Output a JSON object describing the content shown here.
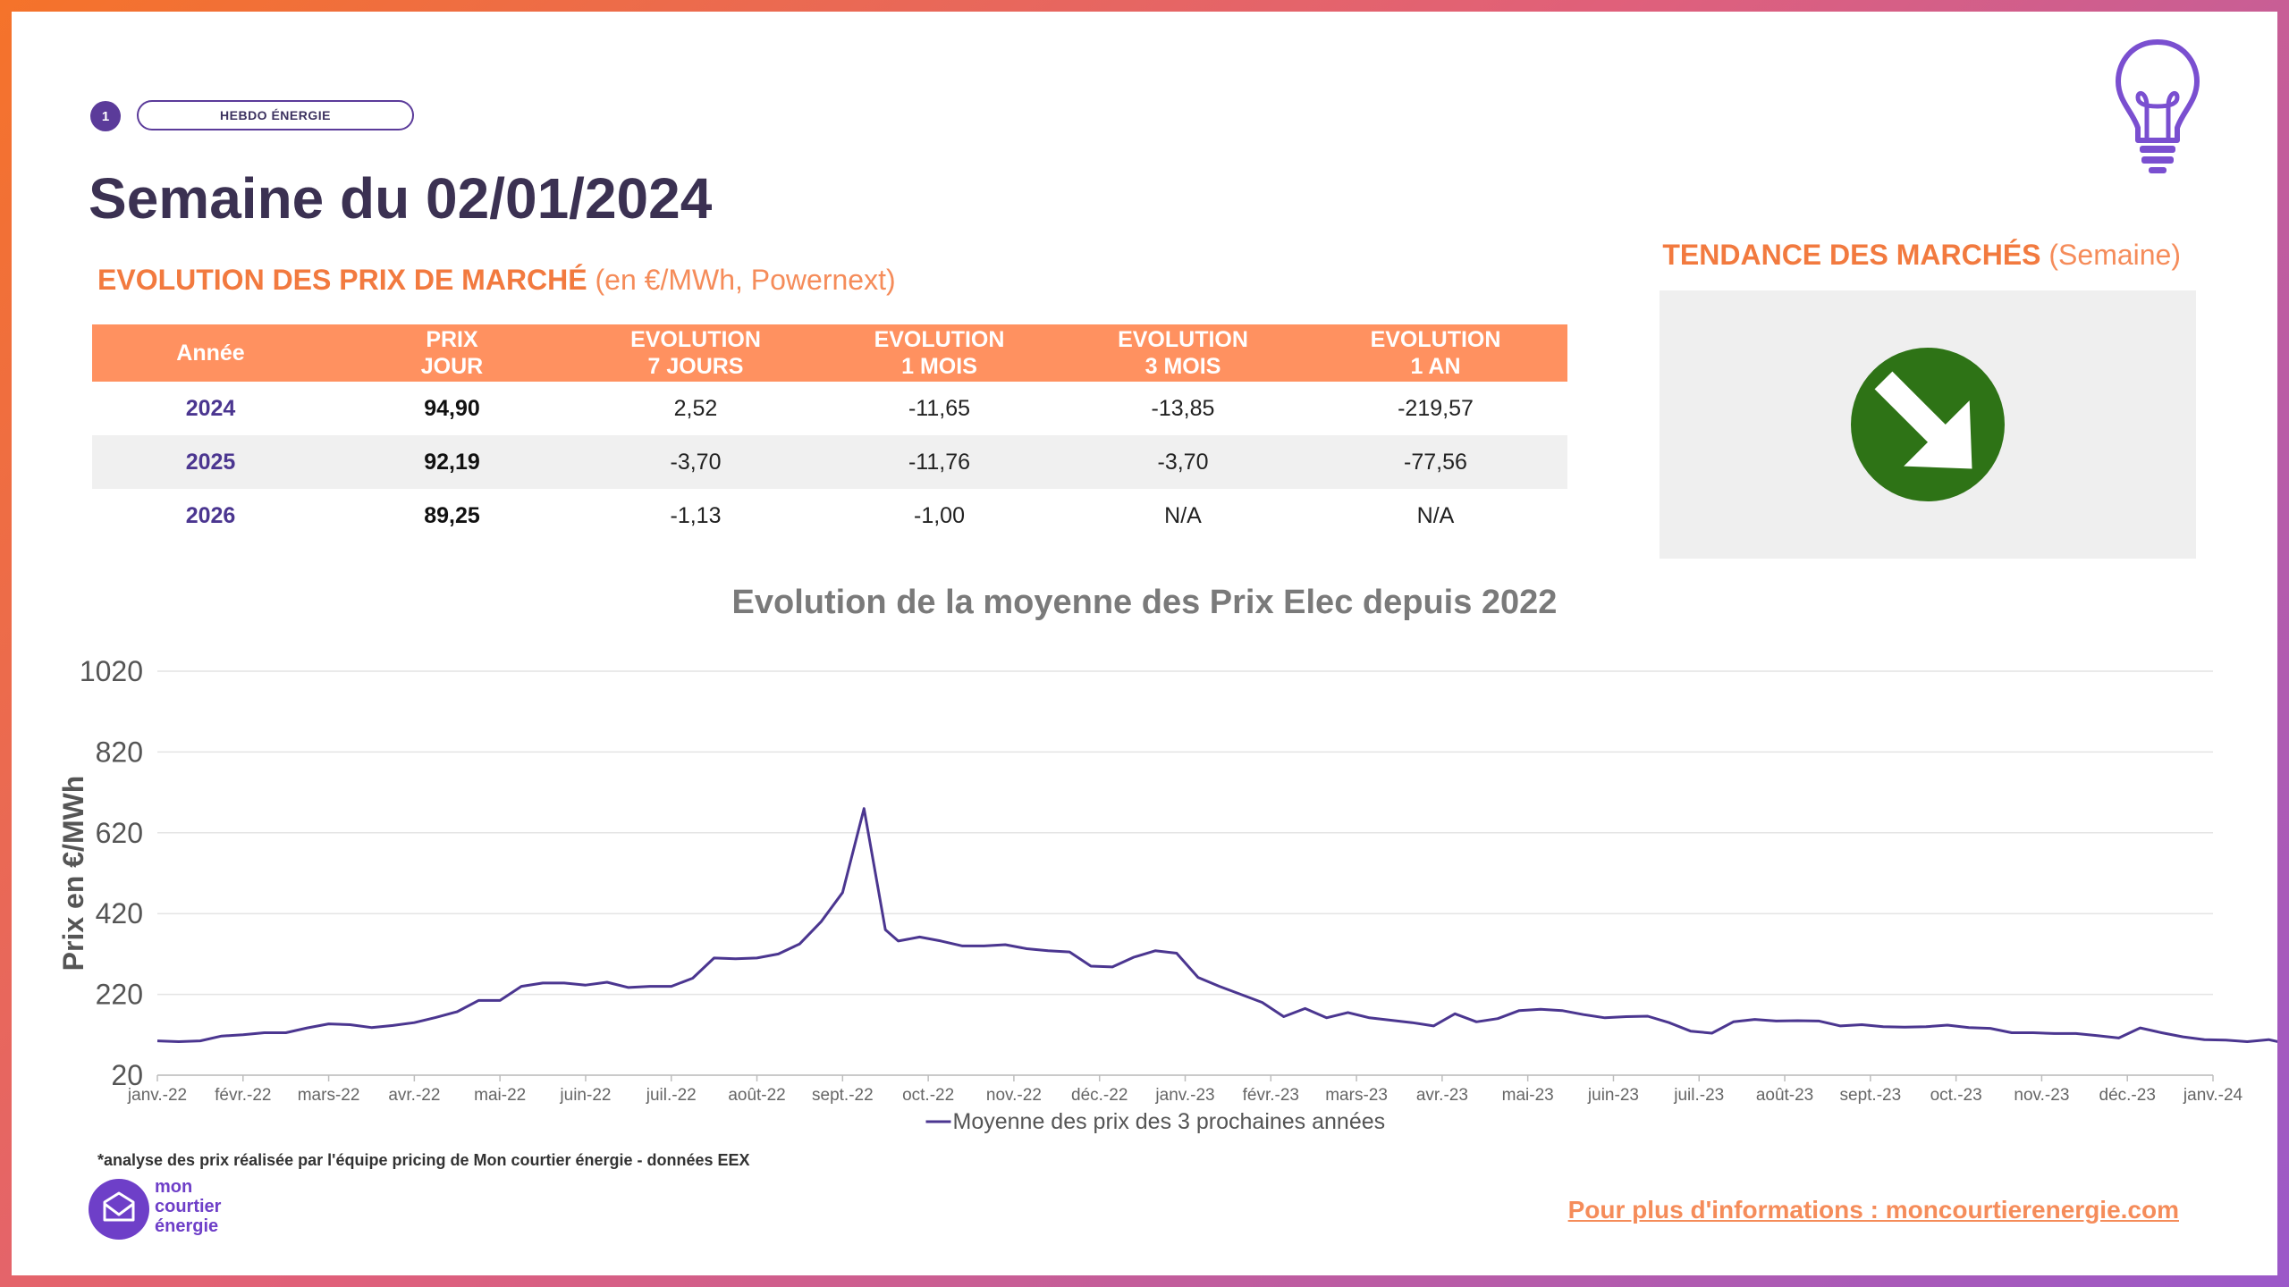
{
  "header": {
    "badge_number": "1",
    "badge_label": "HEBDO ÉNERGIE",
    "title": "Semaine du 02/01/2024",
    "section_bold": "EVOLUTION DES PRIX DE MARCHÉ",
    "section_light": "(en €/MWh, Powernext)",
    "trend_bold": "TENDANCE DES MARCHÉS",
    "trend_light": "(Semaine)"
  },
  "trend": {
    "direction": "down",
    "color": "#2e7316"
  },
  "table": {
    "headers": [
      [
        "Année"
      ],
      [
        "PRIX",
        "JOUR"
      ],
      [
        "EVOLUTION",
        "7 JOURS"
      ],
      [
        "EVOLUTION",
        "1 MOIS"
      ],
      [
        "EVOLUTION",
        "3 MOIS"
      ],
      [
        "EVOLUTION",
        "1 AN"
      ]
    ],
    "rows": [
      [
        "2024",
        "94,90",
        "2,52",
        "-11,65",
        "-13,85",
        "-219,57"
      ],
      [
        "2025",
        "92,19",
        "-3,70",
        "-11,76",
        "-3,70",
        "-77,56"
      ],
      [
        "2026",
        "89,25",
        "-1,13",
        "-1,00",
        "N/A",
        "N/A"
      ]
    ]
  },
  "chart_data": {
    "type": "line",
    "title": "Evolution de la moyenne des Prix Elec depuis 2022",
    "ylabel": "Prix en €/MWh",
    "xlabel": "",
    "ylim": [
      20,
      1020
    ],
    "yticks": [
      20,
      220,
      420,
      620,
      820,
      1020
    ],
    "xticks": [
      "janv.-22",
      "févr.-22",
      "mars-22",
      "avr.-22",
      "mai-22",
      "juin-22",
      "juil.-22",
      "août-22",
      "sept.-22",
      "oct.-22",
      "nov.-22",
      "déc.-22",
      "janv.-23",
      "févr.-23",
      "mars-23",
      "avr.-23",
      "mai-23",
      "juin-23",
      "juil.-23",
      "août-23",
      "sept.-23",
      "oct.-23",
      "nov.-23",
      "déc.-23",
      "janv.-24"
    ],
    "series": [
      {
        "name": "Moyenne des prix des 3 prochaines années",
        "color": "#4b3690",
        "points": [
          [
            0,
            105
          ],
          [
            0.25,
            103
          ],
          [
            0.5,
            105
          ],
          [
            0.75,
            117
          ],
          [
            1,
            120
          ],
          [
            1.25,
            125
          ],
          [
            1.5,
            125
          ],
          [
            1.75,
            137
          ],
          [
            2,
            147
          ],
          [
            2.25,
            145
          ],
          [
            2.5,
            138
          ],
          [
            2.75,
            143
          ],
          [
            3,
            150
          ],
          [
            3.25,
            163
          ],
          [
            3.5,
            177
          ],
          [
            3.75,
            205
          ],
          [
            4,
            205
          ],
          [
            4.25,
            240
          ],
          [
            4.5,
            248
          ],
          [
            4.75,
            248
          ],
          [
            5,
            243
          ],
          [
            5.25,
            250
          ],
          [
            5.5,
            237
          ],
          [
            5.75,
            240
          ],
          [
            6,
            240
          ],
          [
            6.25,
            260
          ],
          [
            6.5,
            310
          ],
          [
            6.75,
            308
          ],
          [
            7,
            310
          ],
          [
            7.25,
            320
          ],
          [
            7.5,
            345
          ],
          [
            7.75,
            400
          ],
          [
            8,
            472
          ],
          [
            8.25,
            680
          ],
          [
            8.5,
            380
          ],
          [
            8.65,
            352
          ],
          [
            8.9,
            362
          ],
          [
            9.15,
            352
          ],
          [
            9.4,
            340
          ],
          [
            9.65,
            340
          ],
          [
            9.9,
            343
          ],
          [
            10.15,
            333
          ],
          [
            10.4,
            328
          ],
          [
            10.65,
            325
          ],
          [
            10.9,
            290
          ],
          [
            11.15,
            288
          ],
          [
            11.4,
            312
          ],
          [
            11.65,
            328
          ],
          [
            11.9,
            322
          ],
          [
            12.15,
            262
          ],
          [
            12.4,
            240
          ],
          [
            12.65,
            220
          ],
          [
            12.9,
            200
          ],
          [
            13.15,
            165
          ],
          [
            13.4,
            185
          ],
          [
            13.65,
            162
          ],
          [
            13.9,
            175
          ],
          [
            14.15,
            162
          ],
          [
            14.4,
            156
          ],
          [
            14.65,
            150
          ],
          [
            14.9,
            142
          ],
          [
            15.15,
            172
          ],
          [
            15.4,
            152
          ],
          [
            15.65,
            160
          ],
          [
            15.9,
            180
          ],
          [
            16.15,
            183
          ],
          [
            16.4,
            180
          ],
          [
            16.65,
            170
          ],
          [
            16.9,
            162
          ],
          [
            17.15,
            165
          ],
          [
            17.4,
            166
          ],
          [
            17.65,
            150
          ],
          [
            17.9,
            129
          ],
          [
            18.15,
            124
          ],
          [
            18.4,
            152
          ],
          [
            18.65,
            158
          ],
          [
            18.9,
            154
          ],
          [
            19.15,
            155
          ],
          [
            19.4,
            154
          ],
          [
            19.65,
            142
          ],
          [
            19.9,
            145
          ],
          [
            20.15,
            140
          ],
          [
            20.4,
            139
          ],
          [
            20.65,
            140
          ],
          [
            20.9,
            144
          ],
          [
            21.15,
            138
          ],
          [
            21.4,
            136
          ],
          [
            21.65,
            125
          ],
          [
            21.9,
            125
          ],
          [
            22.15,
            123
          ],
          [
            22.4,
            123
          ],
          [
            22.65,
            118
          ],
          [
            22.9,
            112
          ],
          [
            23.15,
            137
          ],
          [
            23.4,
            125
          ],
          [
            23.65,
            115
          ],
          [
            23.9,
            108
          ],
          [
            24.15,
            107
          ],
          [
            24.4,
            103
          ],
          [
            24.65,
            108
          ],
          [
            24.9,
            96
          ],
          [
            25.15,
            86
          ],
          [
            25.4,
            77
          ],
          [
            25.65,
            82
          ],
          [
            25.9,
            80
          ]
        ]
      }
    ],
    "grid": true,
    "legend": "bottom"
  },
  "footer": {
    "footnote": "*analyse des prix réalisée par l'équipe pricing de Mon courtier énergie -  données EEX",
    "brand_line1": "mon",
    "brand_line2": "courtier",
    "brand_line3": "énergie",
    "link": "Pour plus d'informations : moncourtierenergie.com"
  }
}
